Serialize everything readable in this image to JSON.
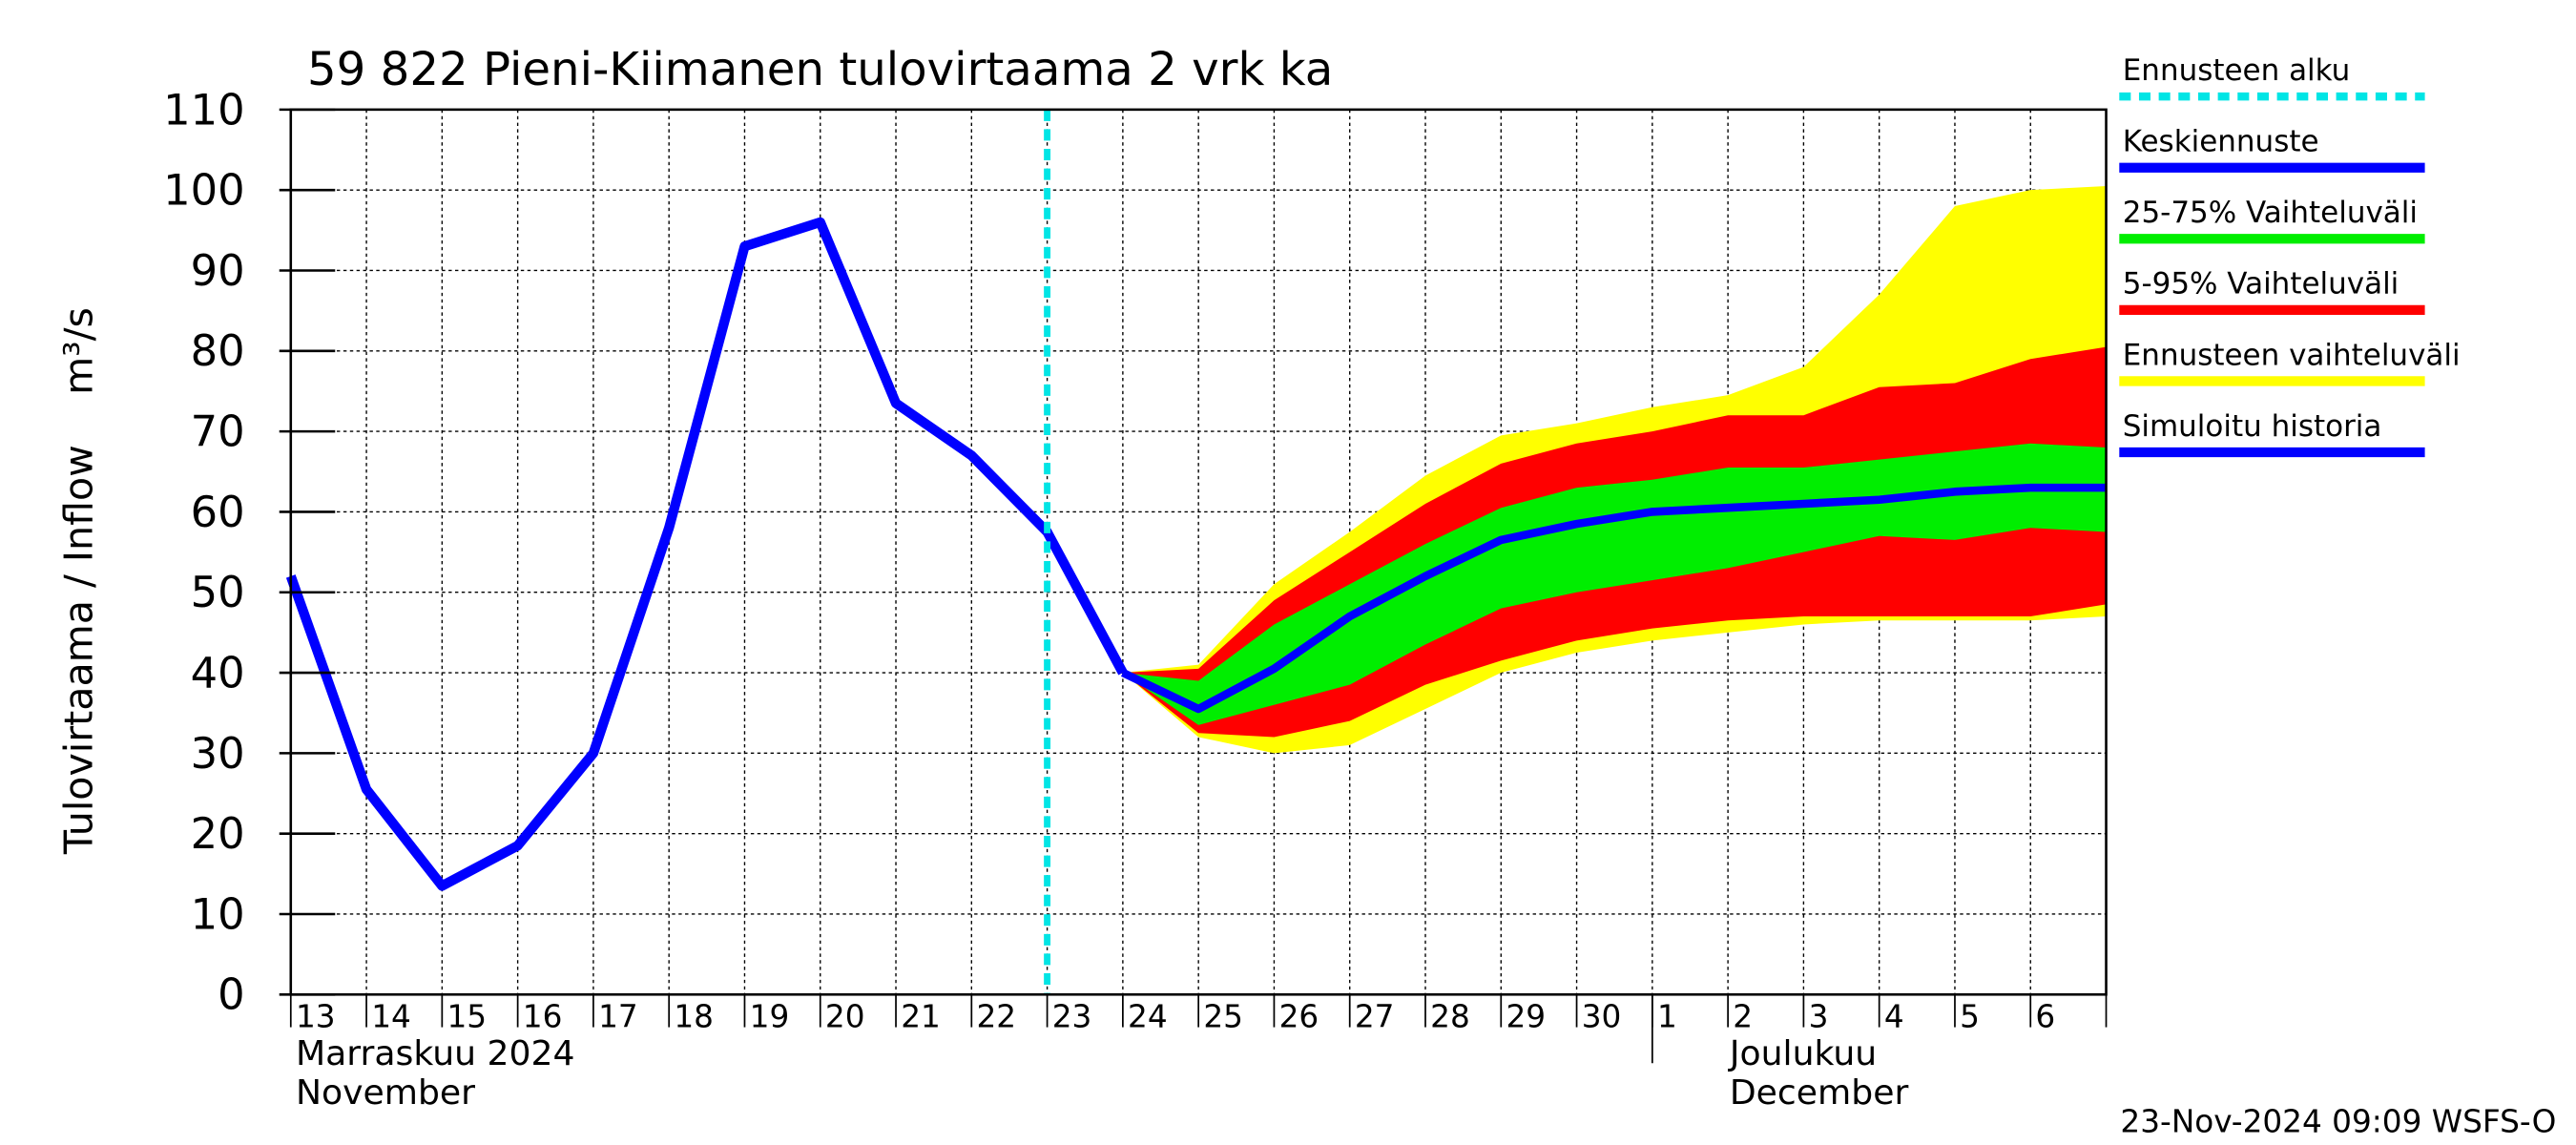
{
  "chart_data": {
    "type": "band-line",
    "title": "59 822 Pieni-Kiimanen tulovirtaama 2 vrk ka",
    "ylabel": "Tulovirtaama / Inflow    m³/s",
    "categories": [
      "13",
      "14",
      "15",
      "16",
      "17",
      "18",
      "19",
      "20",
      "21",
      "22",
      "23",
      "24",
      "25",
      "26",
      "27",
      "28",
      "29",
      "30",
      "1",
      "2",
      "3",
      "4",
      "5",
      "6",
      null
    ],
    "months": [
      {
        "name": "Marraskuu 2024",
        "name_en": "November"
      },
      {
        "name": "Joulukuu",
        "name_en": "December"
      }
    ],
    "ylim": [
      0,
      110
    ],
    "yticks": [
      0,
      10,
      20,
      30,
      40,
      50,
      60,
      70,
      80,
      90,
      100,
      110
    ],
    "grid": true,
    "forecast_start": {
      "name": "Ennusteen alku",
      "color": "#00e5e5",
      "x": "23"
    },
    "series": [
      {
        "name": "Keskiennuste",
        "kind": "line",
        "color": "#0000ff",
        "values": [
          null,
          null,
          null,
          null,
          null,
          null,
          null,
          null,
          null,
          null,
          null,
          40,
          35.5,
          40.5,
          47,
          52,
          56.5,
          58.5,
          60,
          60.5,
          61,
          61.5,
          62.5,
          63,
          63
        ]
      },
      {
        "name": "25-75% Vaihteluväli",
        "kind": "band",
        "color": "#00ee00",
        "low": [
          null,
          null,
          null,
          null,
          null,
          null,
          null,
          null,
          null,
          null,
          null,
          40,
          33.5,
          36,
          38.5,
          43.5,
          48,
          50,
          51.5,
          53,
          55,
          57,
          56.5,
          58,
          57.5
        ],
        "high": [
          null,
          null,
          null,
          null,
          null,
          null,
          null,
          null,
          null,
          null,
          null,
          40,
          39,
          46,
          51,
          56,
          60.5,
          63,
          64,
          65.5,
          65.5,
          66.5,
          67.5,
          68.5,
          68
        ]
      },
      {
        "name": "5-95% Vaihteluväli",
        "kind": "band",
        "color": "#ff0000",
        "low": [
          null,
          null,
          null,
          null,
          null,
          null,
          null,
          null,
          null,
          null,
          null,
          40,
          32.5,
          32,
          34,
          38.5,
          41.5,
          44,
          45.5,
          46.5,
          47,
          47,
          47,
          47,
          48.5
        ],
        "high": [
          null,
          null,
          null,
          null,
          null,
          null,
          null,
          null,
          null,
          null,
          null,
          40,
          40.5,
          49,
          55,
          61,
          66,
          68.5,
          70,
          72,
          72,
          75.5,
          76,
          79,
          80.5
        ]
      },
      {
        "name": "Ennusteen vaihteluväli",
        "kind": "band",
        "color": "#ffff00",
        "low": [
          null,
          null,
          null,
          null,
          null,
          null,
          null,
          null,
          null,
          null,
          null,
          40,
          32,
          30,
          31,
          35.5,
          40,
          42.5,
          44,
          45,
          46,
          46.5,
          46.5,
          46.5,
          47
        ],
        "high": [
          null,
          null,
          null,
          null,
          null,
          null,
          null,
          null,
          null,
          null,
          null,
          40,
          41,
          51,
          57.5,
          64.5,
          69.5,
          71,
          73,
          74.5,
          78,
          87,
          98,
          100,
          100.5
        ]
      },
      {
        "name": "Simuloitu historia",
        "kind": "line",
        "color": "#0000ff",
        "values": [
          52,
          25.5,
          13.5,
          18.5,
          30,
          58,
          93,
          96,
          73.5,
          67,
          57.5,
          40,
          null,
          null,
          null,
          null,
          null,
          null,
          null,
          null,
          null,
          null,
          null,
          null,
          null
        ]
      }
    ],
    "footer": "23-Nov-2024 09:09 WSFS-O"
  }
}
